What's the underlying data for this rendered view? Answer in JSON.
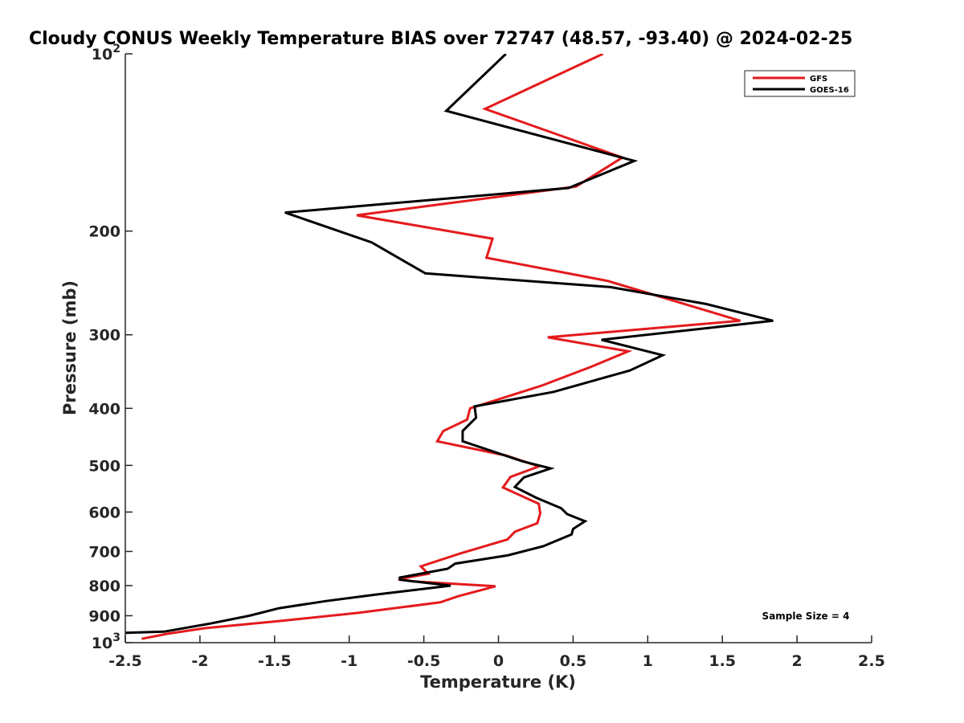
{
  "chart_data": {
    "type": "line",
    "title": "Cloudy CONUS Weekly Temperature BIAS over 72747 (48.57, -93.40) @ 2024-02-25",
    "xlabel": "Temperature (K)",
    "ylabel": "Pressure (mb)",
    "xlim": [
      -2.5,
      2.5
    ],
    "ylim": [
      100,
      1000
    ],
    "yscale": "log",
    "y_reversed": true,
    "x_ticks": [
      -2.5,
      -2,
      -1.5,
      -1,
      -0.5,
      0,
      0.5,
      1,
      1.5,
      2,
      2.5
    ],
    "x_tick_labels": [
      "-2.5",
      "-2",
      "-1.5",
      "-1",
      "-0.5",
      "0",
      "0.5",
      "1",
      "1.5",
      "2",
      "2.5"
    ],
    "y_ticks": [
      100,
      200,
      300,
      400,
      500,
      600,
      700,
      800,
      900,
      1000
    ],
    "y_tick_labels": [
      {
        "base": "10",
        "exp": "2"
      },
      {
        "base": "200",
        "exp": ""
      },
      {
        "base": "300",
        "exp": ""
      },
      {
        "base": "400",
        "exp": ""
      },
      {
        "base": "500",
        "exp": ""
      },
      {
        "base": "600",
        "exp": ""
      },
      {
        "base": "700",
        "exp": ""
      },
      {
        "base": "800",
        "exp": ""
      },
      {
        "base": "900",
        "exp": ""
      },
      {
        "base": "10",
        "exp": "3"
      }
    ],
    "grid": false,
    "legend_position": "top-right",
    "annotation": "Sample Size = 4",
    "series": [
      {
        "name": "GFS",
        "color": "#e41a1c",
        "points": [
          [
            0.7,
            100
          ],
          [
            -0.09,
            124
          ],
          [
            0.83,
            150
          ],
          [
            0.52,
            168
          ],
          [
            -0.95,
            188
          ],
          [
            -0.04,
            206
          ],
          [
            -0.08,
            222
          ],
          [
            0.73,
            243
          ],
          [
            1.62,
            284
          ],
          [
            0.33,
            303
          ],
          [
            0.87,
            320
          ],
          [
            0.62,
            340
          ],
          [
            0.29,
            366
          ],
          [
            -0.19,
            400
          ],
          [
            -0.21,
            418
          ],
          [
            -0.37,
            437
          ],
          [
            -0.41,
            455
          ],
          [
            0.05,
            481
          ],
          [
            0.27,
            502
          ],
          [
            0.08,
            523
          ],
          [
            0.03,
            545
          ],
          [
            0.27,
            581
          ],
          [
            0.28,
            603
          ],
          [
            0.26,
            627
          ],
          [
            0.11,
            648
          ],
          [
            0.06,
            668
          ],
          [
            -0.26,
            706
          ],
          [
            -0.52,
            742
          ],
          [
            -0.47,
            764
          ],
          [
            -0.67,
            780
          ],
          [
            -0.57,
            787
          ],
          [
            -0.02,
            802
          ],
          [
            -0.27,
            834
          ],
          [
            -0.39,
            854
          ],
          [
            -0.94,
            890
          ],
          [
            -1.47,
            919
          ],
          [
            -1.97,
            945
          ],
          [
            -2.22,
            966
          ],
          [
            -2.39,
            985
          ]
        ]
      },
      {
        "name": "GOES-16",
        "color": "#000000",
        "points": [
          [
            0.05,
            100
          ],
          [
            -0.35,
            125
          ],
          [
            0.91,
            152
          ],
          [
            0.47,
            169
          ],
          [
            -1.43,
            186
          ],
          [
            -0.85,
            209
          ],
          [
            -0.49,
            236
          ],
          [
            0.75,
            249
          ],
          [
            1.39,
            266
          ],
          [
            1.84,
            284
          ],
          [
            0.69,
            306
          ],
          [
            1.1,
            325
          ],
          [
            0.88,
            345
          ],
          [
            0.37,
            375
          ],
          [
            -0.16,
            397
          ],
          [
            -0.15,
            415
          ],
          [
            -0.24,
            437
          ],
          [
            -0.24,
            455
          ],
          [
            0.16,
            492
          ],
          [
            0.35,
            506
          ],
          [
            0.17,
            524
          ],
          [
            0.11,
            544
          ],
          [
            0.25,
            567
          ],
          [
            0.42,
            591
          ],
          [
            0.46,
            605
          ],
          [
            0.58,
            622
          ],
          [
            0.5,
            641
          ],
          [
            0.49,
            655
          ],
          [
            0.3,
            686
          ],
          [
            0.06,
            711
          ],
          [
            -0.29,
            734
          ],
          [
            -0.34,
            749
          ],
          [
            -0.66,
            775
          ],
          [
            -0.66,
            782
          ],
          [
            -0.32,
            800
          ],
          [
            -0.81,
            828
          ],
          [
            -1.16,
            850
          ],
          [
            -1.47,
            874
          ],
          [
            -1.67,
            900
          ],
          [
            -1.93,
            928
          ],
          [
            -2.24,
            958
          ],
          [
            -2.5,
            962
          ]
        ]
      }
    ]
  }
}
